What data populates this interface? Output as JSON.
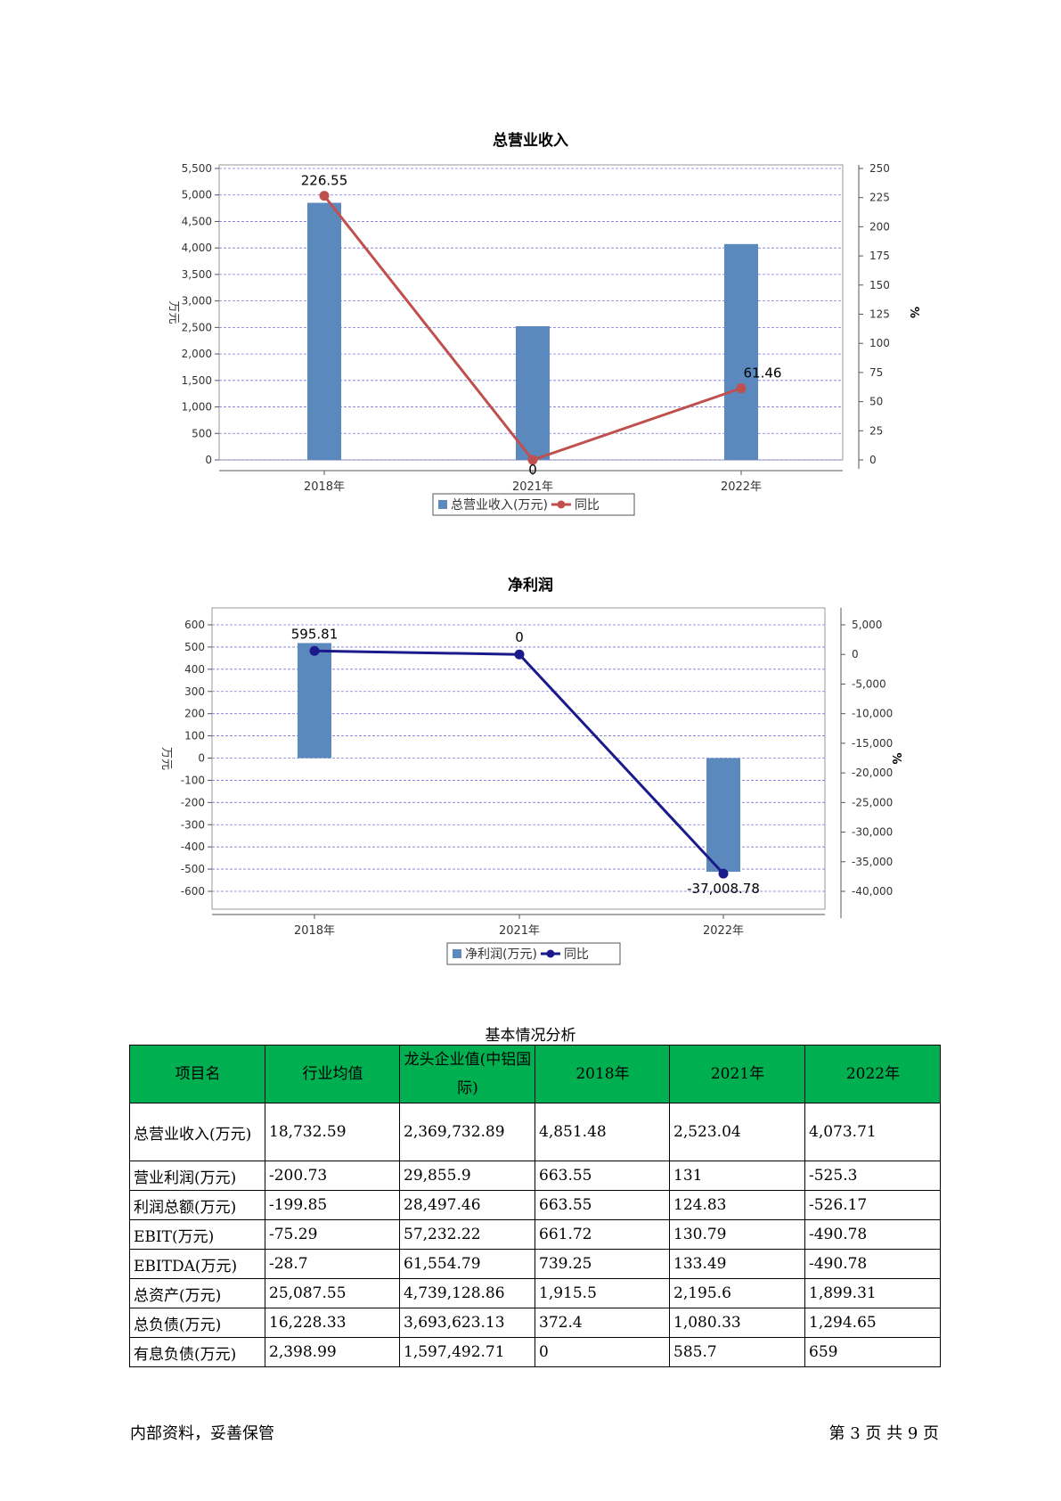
{
  "charts": [
    {
      "title": "总营业收入",
      "type": "bar+line",
      "categories": [
        "2018年",
        "2021年",
        "2022年"
      ],
      "bar_series": {
        "name": "总营业收入(万元)",
        "values": [
          4851.48,
          2523.04,
          4073.71
        ],
        "color": "#5b89be"
      },
      "line_series": {
        "name": "同比",
        "values": [
          226.55,
          0,
          61.46
        ],
        "labels": [
          "226.55",
          "0",
          "61.46"
        ],
        "color": "#c0504d"
      },
      "left_axis": {
        "label": "万元",
        "min": 0,
        "max": 5500,
        "step": 500,
        "ticks": [
          "0",
          "500",
          "1,000",
          "1,500",
          "2,000",
          "2,500",
          "3,000",
          "3,500",
          "4,000",
          "4,500",
          "5,000",
          "5,500"
        ]
      },
      "right_axis": {
        "label": "%",
        "min": 0,
        "max": 250,
        "step": 25,
        "ticks": [
          "0",
          "25",
          "50",
          "75",
          "100",
          "125",
          "150",
          "175",
          "200",
          "225",
          "250"
        ]
      }
    },
    {
      "title": "净利润",
      "type": "bar+line",
      "categories": [
        "2018年",
        "2021年",
        "2022年"
      ],
      "bar_series": {
        "name": "净利润(万元)",
        "values": [
          518,
          0,
          -512
        ],
        "color": "#5b89be"
      },
      "line_series": {
        "name": "同比",
        "values": [
          595.81,
          0,
          -37008.78
        ],
        "labels": [
          "595.81",
          "0",
          "-37,008.78"
        ],
        "color": "#1a1a8a"
      },
      "left_axis": {
        "label": "万元",
        "min": -600,
        "max": 600,
        "step": 100,
        "ticks": [
          "-600",
          "-500",
          "-400",
          "-300",
          "-200",
          "-100",
          "0",
          "100",
          "200",
          "300",
          "400",
          "500",
          "600"
        ]
      },
      "right_axis": {
        "label": "%",
        "min": -40000,
        "max": 5000,
        "step": 5000,
        "ticks": [
          "-40,000",
          "-35,000",
          "-30,000",
          "-25,000",
          "-20,000",
          "-15,000",
          "-10,000",
          "-5,000",
          "0",
          "5,000"
        ]
      }
    }
  ],
  "table": {
    "caption": "基本情况分析",
    "headers": [
      "项目名",
      "行业均值",
      "龙头企业值(中铝国际)",
      "2018年",
      "2021年",
      "2022年"
    ],
    "rows": [
      [
        "总营业收入(万元)",
        "18,732.59",
        "2,369,732.89",
        "4,851.48",
        "2,523.04",
        "4,073.71"
      ],
      [
        "营业利润(万元)",
        "-200.73",
        "29,855.9",
        "663.55",
        "131",
        "-525.3"
      ],
      [
        "利润总额(万元)",
        "-199.85",
        "28,497.46",
        "663.55",
        "124.83",
        "-526.17"
      ],
      [
        "EBIT(万元)",
        "-75.29",
        "57,232.22",
        "661.72",
        "130.79",
        "-490.78"
      ],
      [
        "EBITDA(万元)",
        "-28.7",
        "61,554.79",
        "739.25",
        "133.49",
        "-490.78"
      ],
      [
        "总资产(万元)",
        "25,087.55",
        "4,739,128.86",
        "1,915.5",
        "2,195.6",
        "1,899.31"
      ],
      [
        "总负债(万元)",
        "16,228.33",
        "3,693,623.13",
        "372.4",
        "1,080.33",
        "1,294.65"
      ],
      [
        "有息负债(万元)",
        "2,398.99",
        "1,597,492.71",
        "0",
        "585.7",
        "659"
      ]
    ]
  },
  "footer": {
    "left": "内部资料，妥善保管",
    "right": "第 3 页  共 9 页"
  }
}
